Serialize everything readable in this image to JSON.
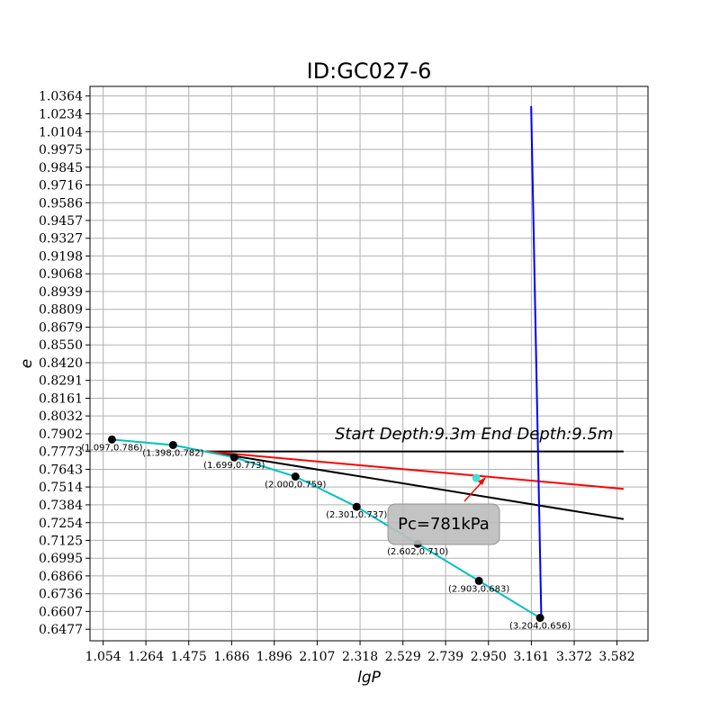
{
  "chart_data": {
    "type": "line",
    "title": "ID:GC027-6",
    "xlabel": "lgP",
    "ylabel": "e",
    "xlim": [
      0.989,
      3.735
    ],
    "ylim": [
      0.6393,
      1.0434
    ],
    "xticks": [
      "1.054",
      "1.264",
      "1.475",
      "1.686",
      "1.896",
      "2.107",
      "2.318",
      "2.529",
      "2.739",
      "2.950",
      "3.161",
      "3.372",
      "3.582"
    ],
    "yticks": [
      "1.0364",
      "1.0234",
      "1.0104",
      "0.9975",
      "0.9845",
      "0.9716",
      "0.9586",
      "0.9457",
      "0.9327",
      "0.9198",
      "0.9068",
      "0.8939",
      "0.8809",
      "0.8679",
      "0.8550",
      "0.8420",
      "0.8291",
      "0.8161",
      "0.8032",
      "0.7902",
      "0.7773",
      "0.7643",
      "0.7514",
      "0.7384",
      "0.7254",
      "0.7125",
      "0.6995",
      "0.6866",
      "0.6736",
      "0.6607",
      "0.6477"
    ],
    "grid": true,
    "series": [
      {
        "color": "#00bfbf",
        "points": [
          {
            "x": 1.097,
            "y": 0.786,
            "label": "(1.097,0.786)"
          },
          {
            "x": 1.398,
            "y": 0.782,
            "label": "(1.398,0.782)"
          },
          {
            "x": 1.699,
            "y": 0.773,
            "label": "(1.699,0.773)"
          },
          {
            "x": 2.0,
            "y": 0.759,
            "label": "(2.000,0.759)"
          },
          {
            "x": 2.301,
            "y": 0.737,
            "label": "(2.301,0.737)"
          },
          {
            "x": 2.602,
            "y": 0.71,
            "label": "(2.602,0.710)"
          },
          {
            "x": 2.903,
            "y": 0.683,
            "label": "(2.903,0.683)"
          },
          {
            "x": 3.204,
            "y": 0.656,
            "label": "(3.204,0.656)"
          }
        ]
      }
    ],
    "construction_lines": [
      {
        "color": "#000000",
        "x": [
          1.56,
          3.615
        ],
        "y": [
          0.7773,
          0.7773
        ]
      },
      {
        "color": "#000000",
        "x": [
          1.56,
          3.615
        ],
        "y": [
          0.7773,
          0.728
        ]
      },
      {
        "color": "#ff0000",
        "x": [
          1.56,
          3.615
        ],
        "y": [
          0.7773,
          0.75
        ]
      },
      {
        "color": "#0000ff",
        "x": [
          3.16,
          3.21
        ],
        "y": [
          1.029,
          0.656
        ]
      }
    ],
    "pc_marker": {
      "x": 2.89,
      "y": 0.758,
      "color": "#40e0d0"
    },
    "annotations": {
      "depth": "Start Depth:9.3m End Depth:9.5m",
      "pc": "Pc=781kPa"
    }
  }
}
